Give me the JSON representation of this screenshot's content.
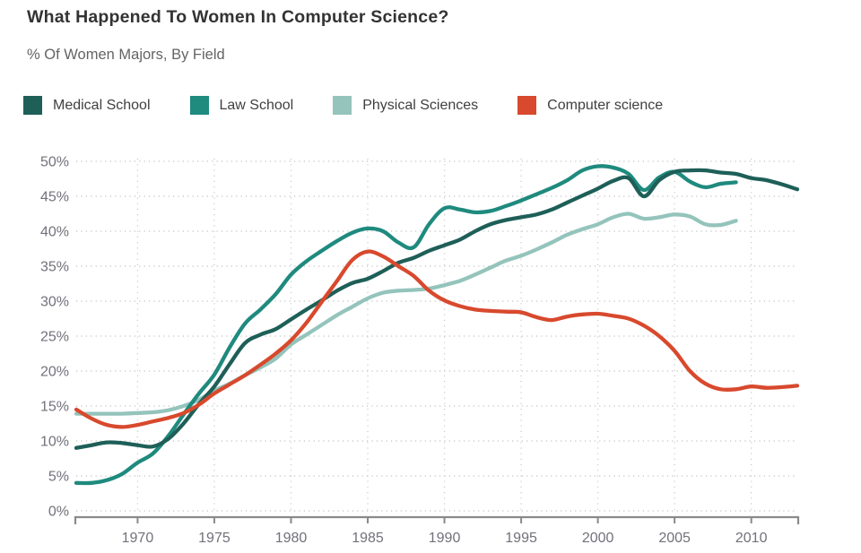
{
  "page": {
    "title": "What Happened To Women In Computer Science?",
    "subtitle": "% Of Women Majors, By Field"
  },
  "colors": {
    "background": "#ffffff",
    "title_text": "#333333",
    "subtitle_text": "#646464",
    "legend_text": "#3f3f3f",
    "axis_label_text": "#71717a",
    "grid_line": "#cccccc",
    "axis_line": "#8a8a8a"
  },
  "chart_data": {
    "type": "line",
    "title": "What Happened To Women In Computer Science?",
    "subtitle": "% Of Women Majors, By Field",
    "xlabel": "",
    "ylabel": "% of women majors",
    "x_range": [
      1966,
      2013
    ],
    "ylim": [
      0,
      50
    ],
    "y_ticks": [
      0,
      5,
      10,
      15,
      20,
      25,
      30,
      35,
      40,
      45,
      50
    ],
    "y_tick_suffix": "%",
    "x_ticks": [
      1970,
      1975,
      1980,
      1985,
      1990,
      1995,
      2000,
      2005,
      2010
    ],
    "grid": true,
    "legend_position": "top",
    "series": [
      {
        "name": "Medical School",
        "color": "#1e5f58",
        "start_year": 1966,
        "end_year": 2013,
        "values": [
          9.0,
          9.4,
          9.8,
          9.7,
          9.4,
          9.2,
          10.3,
          12.5,
          15.3,
          17.8,
          21.0,
          24.0,
          25.2,
          26.0,
          27.4,
          28.8,
          30.1,
          31.5,
          32.6,
          33.2,
          34.3,
          35.5,
          36.2,
          37.2,
          38.0,
          38.8,
          40.0,
          41.0,
          41.6,
          42.0,
          42.4,
          43.1,
          44.1,
          45.1,
          46.1,
          47.2,
          47.6,
          45.0,
          47.3,
          48.5,
          48.7,
          48.7,
          48.4,
          48.2,
          47.6,
          47.3,
          46.7,
          46.0
        ]
      },
      {
        "name": "Law School",
        "color": "#1f8a7e",
        "start_year": 1966,
        "end_year": 2009,
        "values": [
          4.0,
          4.0,
          4.4,
          5.3,
          6.9,
          8.2,
          10.7,
          13.8,
          16.8,
          19.5,
          23.4,
          26.8,
          28.8,
          31.0,
          33.8,
          35.7,
          37.2,
          38.6,
          39.8,
          40.4,
          40.0,
          38.4,
          37.7,
          41.0,
          43.3,
          43.1,
          42.7,
          42.9,
          43.6,
          44.4,
          45.3,
          46.2,
          47.3,
          48.7,
          49.3,
          49.1,
          48.2,
          45.9,
          47.7,
          48.5,
          47.1,
          46.3,
          46.8,
          47.0
        ]
      },
      {
        "name": "Physical Sciences",
        "color": "#94c4bc",
        "start_year": 1966,
        "end_year": 2009,
        "values": [
          13.9,
          13.9,
          13.9,
          13.9,
          14.0,
          14.1,
          14.4,
          15.0,
          15.9,
          17.2,
          18.2,
          19.4,
          20.5,
          21.8,
          23.8,
          25.2,
          26.6,
          28.0,
          29.2,
          30.4,
          31.2,
          31.5,
          31.6,
          31.8,
          32.3,
          32.9,
          33.8,
          34.8,
          35.8,
          36.5,
          37.4,
          38.4,
          39.5,
          40.3,
          41.0,
          42.0,
          42.5,
          41.8,
          42.0,
          42.4,
          42.1,
          41.0,
          40.9,
          41.5
        ]
      },
      {
        "name": "Computer science",
        "color": "#d8492d",
        "start_year": 1966,
        "end_year": 2013,
        "values": [
          14.5,
          13.2,
          12.3,
          12.0,
          12.3,
          12.8,
          13.3,
          14.0,
          15.2,
          16.8,
          18.1,
          19.4,
          20.9,
          22.5,
          24.4,
          26.9,
          29.9,
          32.9,
          35.9,
          37.1,
          36.4,
          35.0,
          33.6,
          31.5,
          30.1,
          29.3,
          28.8,
          28.6,
          28.5,
          28.4,
          27.7,
          27.3,
          27.8,
          28.1,
          28.2,
          27.9,
          27.5,
          26.5,
          25.0,
          22.9,
          20.0,
          18.2,
          17.4,
          17.4,
          17.8,
          17.6,
          17.7,
          17.9
        ]
      }
    ]
  }
}
